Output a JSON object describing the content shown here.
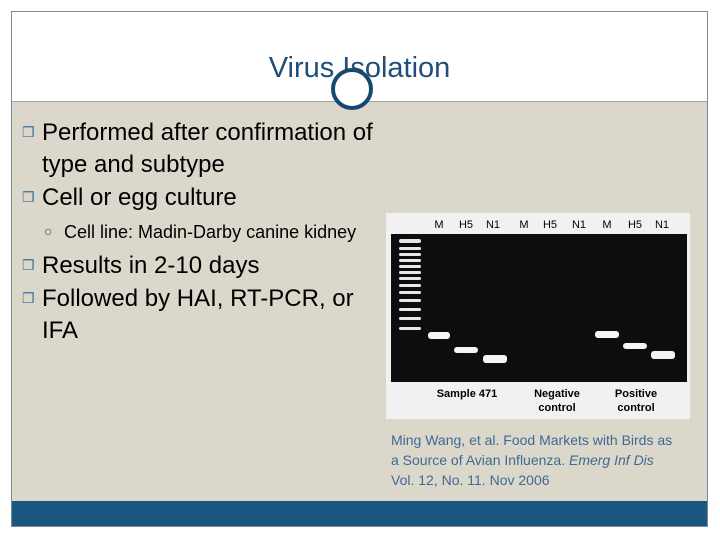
{
  "slide": {
    "title": "Virus Isolation",
    "bullets": [
      {
        "text": "Performed after confirmation of type and subtype"
      },
      {
        "text": "Cell or egg culture"
      },
      {
        "text": "Cell line: Madin-Darby canine kidney"
      },
      {
        "text": "Results in 2-10 days"
      },
      {
        "text": "Followed by HAI, RT-PCR, or IFA"
      }
    ]
  },
  "gel": {
    "lane_labels": [
      "M",
      "H5",
      "N1",
      "M",
      "H5",
      "N1",
      "M",
      "H5",
      "N1"
    ],
    "groups": [
      "Sample 471",
      "Negative",
      "control",
      "Positive",
      "control"
    ]
  },
  "caption": {
    "line1": "Ming Wang, et al. Food Markets with Birds as",
    "line2_prefix": "a Source of Avian Influenza. ",
    "line2_journal": "Emerg Inf Dis",
    "line3": "Vol. 12, No. 11. Nov 2006"
  },
  "colors": {
    "title": "#1f4e79",
    "accent": "#1a5780",
    "caption": "#3e6a94",
    "body_bg": "#dcd7cb"
  }
}
